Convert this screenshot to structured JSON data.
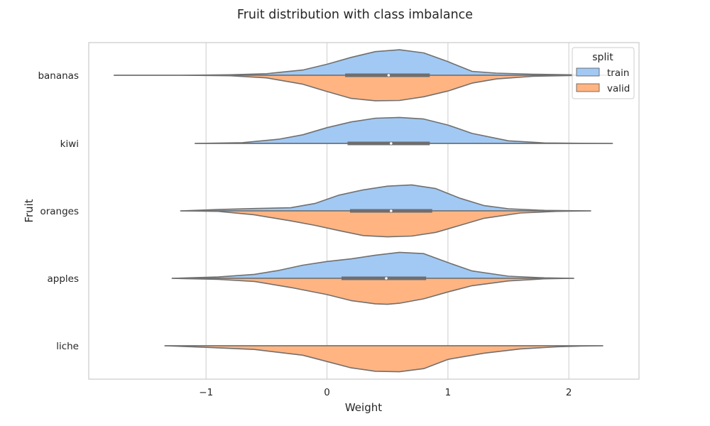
{
  "chart_data": {
    "type": "violin",
    "orientation": "horizontal",
    "split": true,
    "title": "Fruit distribution with class imbalance",
    "xlabel": "Weight",
    "ylabel": "Fruit",
    "xlim": [
      -1.97,
      2.58
    ],
    "xticks": [
      -1,
      0,
      1,
      2
    ],
    "xtick_labels": [
      "−1",
      "0",
      "1",
      "2"
    ],
    "grid": true,
    "legend": {
      "title": "split",
      "placement": "top-right",
      "entries": [
        "train",
        "valid"
      ]
    },
    "colors": {
      "train": "#a1c9f4",
      "valid": "#ffb482",
      "outline": "#707070"
    },
    "categories": [
      "bananas",
      "kiwi",
      "oranges",
      "apples",
      "liche"
    ],
    "box": [
      {
        "q1": 0.15,
        "median": 0.51,
        "q3": 0.85
      },
      {
        "q1": 0.17,
        "median": 0.53,
        "q3": 0.85
      },
      {
        "q1": 0.19,
        "median": 0.53,
        "q3": 0.87
      },
      {
        "q1": 0.12,
        "median": 0.49,
        "q3": 0.82
      },
      null
    ],
    "series": [
      {
        "name": "train",
        "violins": [
          {
            "x": [
              -1.76,
              -1.2,
              -0.8,
              -0.5,
              -0.2,
              0.0,
              0.2,
              0.4,
              0.6,
              0.8,
              1.0,
              1.2,
              1.4,
              1.7,
              2.0,
              2.35
            ],
            "density": [
              0.0,
              0.0,
              0.02,
              0.06,
              0.2,
              0.42,
              0.68,
              0.9,
              0.97,
              0.85,
              0.52,
              0.15,
              0.08,
              0.04,
              0.02,
              0.0
            ]
          },
          {
            "x": [
              -1.09,
              -0.7,
              -0.4,
              -0.2,
              0.0,
              0.2,
              0.4,
              0.6,
              0.8,
              1.0,
              1.2,
              1.5,
              1.8,
              2.1,
              2.36
            ],
            "density": [
              0.0,
              0.03,
              0.16,
              0.33,
              0.6,
              0.82,
              0.96,
              0.99,
              0.93,
              0.7,
              0.38,
              0.1,
              0.02,
              0.005,
              0.0
            ]
          },
          {
            "x": [
              -1.21,
              -0.9,
              -0.6,
              -0.3,
              -0.1,
              0.1,
              0.3,
              0.5,
              0.7,
              0.9,
              1.1,
              1.3,
              1.5,
              1.8,
              2.18
            ],
            "density": [
              0.0,
              0.05,
              0.09,
              0.12,
              0.28,
              0.6,
              0.8,
              0.94,
              0.99,
              0.85,
              0.48,
              0.2,
              0.08,
              0.02,
              0.0
            ]
          },
          {
            "x": [
              -1.28,
              -0.9,
              -0.6,
              -0.4,
              -0.2,
              0.0,
              0.2,
              0.4,
              0.6,
              0.8,
              1.0,
              1.2,
              1.5,
              1.8,
              2.04
            ],
            "density": [
              0.0,
              0.05,
              0.15,
              0.3,
              0.5,
              0.64,
              0.74,
              0.88,
              0.99,
              0.94,
              0.6,
              0.28,
              0.08,
              0.02,
              0.0
            ]
          },
          {
            "x": [
              -1.34,
              2.28
            ],
            "density": [
              0.0,
              0.0
            ]
          }
        ]
      },
      {
        "name": "valid",
        "violins": [
          {
            "x": [
              -1.76,
              -1.2,
              -0.8,
              -0.5,
              -0.2,
              0.0,
              0.2,
              0.4,
              0.6,
              0.8,
              1.0,
              1.2,
              1.4,
              1.7,
              2.0,
              2.2
            ],
            "density": [
              0.0,
              0.0,
              0.02,
              0.1,
              0.34,
              0.62,
              0.88,
              0.97,
              0.96,
              0.82,
              0.6,
              0.3,
              0.14,
              0.04,
              0.01,
              0.0
            ]
          },
          {
            "x": [
              -1.09,
              2.36
            ],
            "density": [
              0.0,
              0.0
            ]
          },
          {
            "x": [
              -1.21,
              -0.9,
              -0.6,
              -0.3,
              -0.1,
              0.1,
              0.3,
              0.5,
              0.7,
              0.9,
              1.1,
              1.3,
              1.6,
              1.9,
              2.18
            ],
            "density": [
              0.0,
              0.02,
              0.15,
              0.38,
              0.55,
              0.75,
              0.94,
              0.99,
              0.96,
              0.82,
              0.55,
              0.28,
              0.08,
              0.02,
              0.0
            ]
          },
          {
            "x": [
              -1.28,
              -0.9,
              -0.6,
              -0.3,
              0.0,
              0.2,
              0.4,
              0.5,
              0.6,
              0.8,
              1.0,
              1.2,
              1.5,
              1.8,
              2.04
            ],
            "density": [
              0.0,
              0.04,
              0.12,
              0.35,
              0.62,
              0.85,
              0.97,
              0.99,
              0.95,
              0.78,
              0.52,
              0.28,
              0.1,
              0.02,
              0.0
            ]
          },
          {
            "x": [
              -1.34,
              -1.0,
              -0.6,
              -0.2,
              0.0,
              0.2,
              0.4,
              0.6,
              0.8,
              1.0,
              1.3,
              1.6,
              1.9,
              2.1,
              2.28
            ],
            "density": [
              0.0,
              0.06,
              0.14,
              0.36,
              0.6,
              0.84,
              0.97,
              0.99,
              0.87,
              0.52,
              0.28,
              0.12,
              0.04,
              0.01,
              0.0
            ]
          }
        ]
      }
    ]
  }
}
